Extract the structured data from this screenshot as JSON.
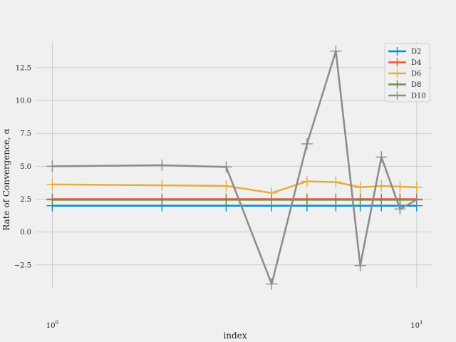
{
  "chart_data": {
    "type": "line",
    "xscale": "log",
    "xlabel": "index",
    "ylabel": "Rate of Convergence, α",
    "xlim": [
      0.9,
      11
    ],
    "ylim": [
      -4.3,
      14.5
    ],
    "xticks": [
      {
        "value": 1,
        "base": "10",
        "exp": "0"
      },
      {
        "value": 10,
        "base": "10",
        "exp": "1"
      }
    ],
    "yticks": [
      {
        "value": -2.5,
        "label": "−2.5"
      },
      {
        "value": 0,
        "label": "0.0"
      },
      {
        "value": 2.5,
        "label": "2.5"
      },
      {
        "value": 5,
        "label": "5.0"
      },
      {
        "value": 7.5,
        "label": "7.5"
      },
      {
        "value": 10,
        "label": "10.0"
      },
      {
        "value": 12.5,
        "label": "12.5"
      }
    ],
    "grid": true,
    "legend_position": "top-right",
    "x": [
      1,
      2,
      3,
      4,
      5,
      6,
      7,
      8,
      9,
      10
    ],
    "series": [
      {
        "name": "D2",
        "color": "#008fd5",
        "values": [
          2.0,
          2.0,
          2.0,
          2.0,
          2.0,
          2.0,
          2.0,
          2.0,
          2.0,
          2.0
        ]
      },
      {
        "name": "D4",
        "color": "#fc4f30",
        "values": [
          2.5,
          2.5,
          2.5,
          2.5,
          2.5,
          2.5,
          2.5,
          2.5,
          2.5,
          2.5
        ]
      },
      {
        "name": "D6",
        "color": "#e5ae38",
        "values": [
          3.62,
          3.55,
          3.5,
          2.97,
          3.85,
          3.8,
          3.4,
          3.5,
          3.45,
          3.4
        ]
      },
      {
        "name": "D8",
        "color": "#6d904f",
        "values": [
          2.45,
          2.45,
          2.45,
          2.45,
          2.45,
          2.45,
          2.45,
          2.45,
          2.45,
          2.45
        ]
      },
      {
        "name": "D10",
        "color": "#8b8b8b",
        "values": [
          5.0,
          5.08,
          4.95,
          -3.95,
          6.7,
          13.75,
          -2.55,
          5.7,
          1.75,
          2.45
        ]
      }
    ]
  }
}
